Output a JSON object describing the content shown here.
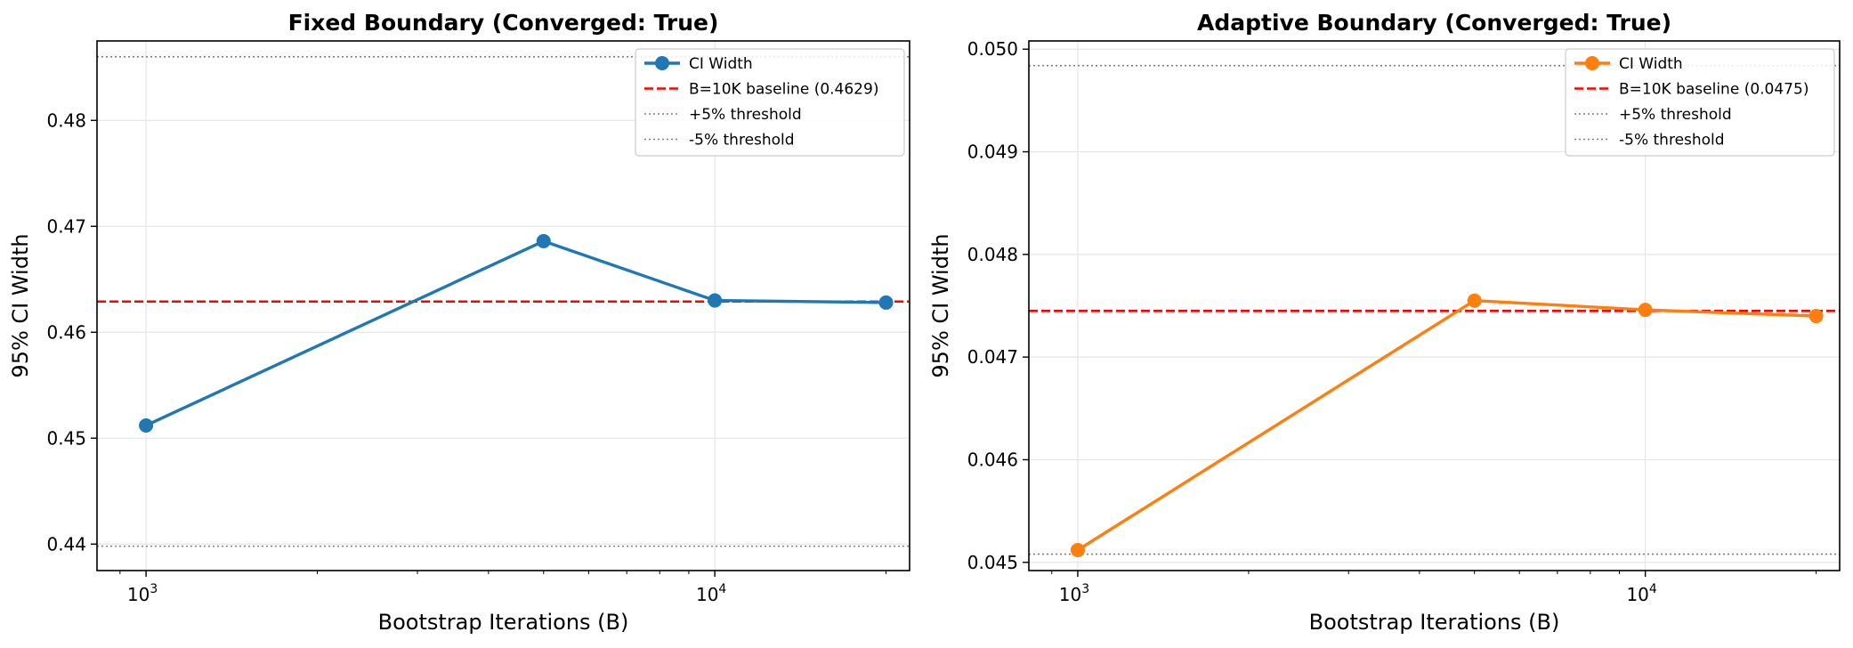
{
  "chart_data": [
    {
      "type": "line",
      "title": "Fixed Boundary (Converged: True)",
      "xlabel": "Bootstrap Iterations (B)",
      "ylabel": "95% CI Width",
      "x_scale": "log",
      "xlim": [
        820,
        22000
      ],
      "ylim": [
        0.4375,
        0.4875
      ],
      "x_ticks": [
        1000,
        10000
      ],
      "x_tick_labels": [
        {
          "base": "10",
          "exp": "3"
        },
        {
          "base": "10",
          "exp": "4"
        }
      ],
      "y_ticks": [
        0.44,
        0.45,
        0.46,
        0.47,
        0.48
      ],
      "y_tick_labels": [
        "0.44",
        "0.45",
        "0.46",
        "0.47",
        "0.48"
      ],
      "grid": true,
      "legend_position": "top-right",
      "series": [
        {
          "name": "CI Width",
          "color": "#1f77b4",
          "x": [
            1000,
            5000,
            10000,
            20000
          ],
          "y": [
            0.4512,
            0.4686,
            0.463,
            0.4628
          ]
        }
      ],
      "reference_lines": [
        {
          "name": "B=10K baseline (0.4629)",
          "y": 0.4629,
          "color": "#ff0000",
          "style": "dashed"
        },
        {
          "name": "+5% threshold",
          "y": 0.486,
          "color": "#808080",
          "style": "dotted"
        },
        {
          "name": "-5% threshold",
          "y": 0.4398,
          "color": "#808080",
          "style": "dotted"
        }
      ]
    },
    {
      "type": "line",
      "title": "Adaptive Boundary (Converged: True)",
      "xlabel": "Bootstrap Iterations (B)",
      "ylabel": "95% CI Width",
      "x_scale": "log",
      "xlim": [
        820,
        22000
      ],
      "ylim": [
        0.04492,
        0.05008
      ],
      "x_ticks": [
        1000,
        10000
      ],
      "x_tick_labels": [
        {
          "base": "10",
          "exp": "3"
        },
        {
          "base": "10",
          "exp": "4"
        }
      ],
      "y_ticks": [
        0.045,
        0.046,
        0.047,
        0.048,
        0.049,
        0.05
      ],
      "y_tick_labels": [
        "0.045",
        "0.046",
        "0.047",
        "0.048",
        "0.049",
        "0.050"
      ],
      "grid": true,
      "legend_position": "top-right",
      "series": [
        {
          "name": "CI Width",
          "color": "#ff7f0e",
          "x": [
            1000,
            5000,
            10000,
            20000
          ],
          "y": [
            0.04512,
            0.04755,
            0.04746,
            0.0474
          ]
        }
      ],
      "reference_lines": [
        {
          "name": "B=10K baseline (0.0475)",
          "y": 0.04745,
          "color": "#ff0000",
          "style": "dashed"
        },
        {
          "name": "+5% threshold",
          "y": 0.04984,
          "color": "#808080",
          "style": "dotted"
        },
        {
          "name": "-5% threshold",
          "y": 0.04508,
          "color": "#808080",
          "style": "dotted"
        }
      ]
    }
  ]
}
